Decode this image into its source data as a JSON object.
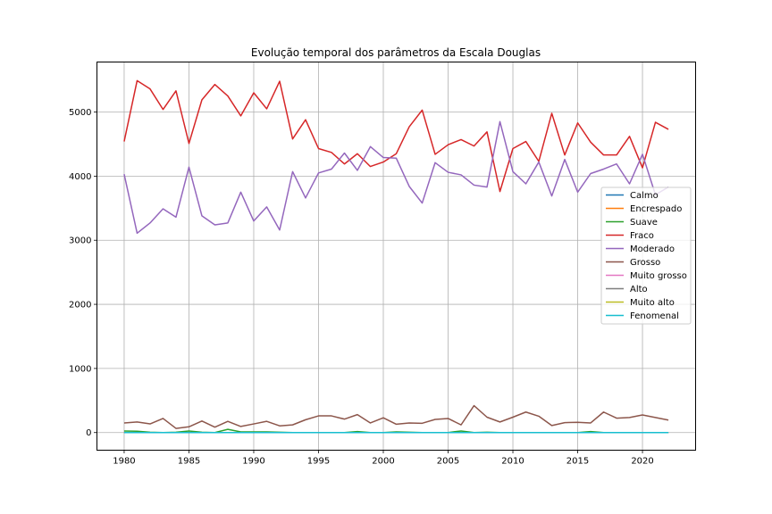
{
  "chart_data": {
    "type": "line",
    "title": "Evolução temporal dos parâmetros da Escala Douglas",
    "xlabel": "",
    "ylabel": "",
    "xlim": [
      1977.9,
      2024.1
    ],
    "ylim": [
      -275,
      5780
    ],
    "xticks": [
      1980,
      1985,
      1990,
      1995,
      2000,
      2005,
      2010,
      2015,
      2020
    ],
    "yticks": [
      0,
      1000,
      2000,
      3000,
      4000,
      5000
    ],
    "grid": true,
    "legend_position": "center-right",
    "x": [
      1980,
      1981,
      1982,
      1983,
      1984,
      1985,
      1986,
      1987,
      1988,
      1989,
      1990,
      1991,
      1992,
      1993,
      1994,
      1995,
      1996,
      1997,
      1998,
      1999,
      2000,
      2001,
      2002,
      2003,
      2004,
      2005,
      2006,
      2007,
      2008,
      2009,
      2010,
      2011,
      2012,
      2013,
      2014,
      2015,
      2016,
      2017,
      2018,
      2019,
      2020,
      2021,
      2022
    ],
    "series": [
      {
        "name": "Calmo",
        "color": "#1f77b4",
        "values": [
          0,
          0,
          0,
          0,
          0,
          0,
          0,
          0,
          0,
          0,
          0,
          0,
          0,
          0,
          0,
          0,
          0,
          0,
          0,
          0,
          0,
          0,
          0,
          0,
          0,
          0,
          0,
          0,
          0,
          0,
          0,
          0,
          0,
          0,
          0,
          0,
          0,
          0,
          0,
          0,
          0,
          0,
          0
        ]
      },
      {
        "name": "Encrespado",
        "color": "#ff7f0e",
        "values": [
          0,
          0,
          0,
          0,
          0,
          0,
          0,
          0,
          0,
          0,
          0,
          0,
          0,
          0,
          0,
          0,
          0,
          0,
          0,
          0,
          0,
          0,
          0,
          0,
          0,
          0,
          0,
          0,
          0,
          0,
          0,
          0,
          0,
          0,
          0,
          0,
          0,
          0,
          0,
          0,
          0,
          0,
          0
        ]
      },
      {
        "name": "Suave",
        "color": "#2ca02c",
        "values": [
          25,
          20,
          5,
          0,
          5,
          25,
          5,
          0,
          50,
          10,
          10,
          10,
          5,
          0,
          0,
          0,
          0,
          0,
          15,
          0,
          0,
          10,
          5,
          0,
          0,
          0,
          25,
          0,
          5,
          0,
          0,
          0,
          0,
          0,
          0,
          0,
          15,
          0,
          0,
          0,
          0,
          0,
          0
        ]
      },
      {
        "name": "Fraco",
        "color": "#d62728",
        "values": [
          4540,
          5490,
          5360,
          5040,
          5330,
          4510,
          5190,
          5430,
          5250,
          4940,
          5300,
          5050,
          5480,
          4580,
          4880,
          4430,
          4370,
          4190,
          4350,
          4150,
          4220,
          4350,
          4770,
          5030,
          4340,
          4490,
          4570,
          4470,
          4690,
          3760,
          4430,
          4540,
          4230,
          4980,
          4330,
          4830,
          4530,
          4330,
          4330,
          4620,
          4130,
          4840,
          4730
        ]
      },
      {
        "name": "Moderado",
        "color": "#9467bd",
        "values": [
          4030,
          3110,
          3270,
          3490,
          3360,
          4140,
          3380,
          3240,
          3270,
          3750,
          3300,
          3520,
          3160,
          4070,
          3660,
          4050,
          4110,
          4360,
          4090,
          4460,
          4290,
          4280,
          3840,
          3580,
          4210,
          4060,
          4020,
          3860,
          3830,
          4850,
          4070,
          3880,
          4220,
          3690,
          4260,
          3750,
          4040,
          4110,
          4190,
          3880,
          4340,
          3710,
          3830
        ]
      },
      {
        "name": "Grosso",
        "color": "#8c564b",
        "values": [
          150,
          165,
          135,
          220,
          65,
          90,
          180,
          85,
          175,
          95,
          135,
          175,
          105,
          120,
          200,
          260,
          260,
          210,
          280,
          150,
          230,
          130,
          150,
          145,
          205,
          220,
          120,
          420,
          240,
          165,
          240,
          320,
          255,
          110,
          155,
          160,
          150,
          320,
          225,
          235,
          275,
          235,
          195
        ]
      },
      {
        "name": "Muito grosso",
        "color": "#e377c2",
        "values": [
          0,
          0,
          0,
          0,
          0,
          0,
          0,
          0,
          0,
          0,
          0,
          0,
          0,
          0,
          0,
          0,
          0,
          0,
          0,
          0,
          0,
          0,
          0,
          0,
          0,
          0,
          0,
          0,
          0,
          0,
          0,
          0,
          0,
          0,
          0,
          0,
          0,
          0,
          0,
          0,
          0,
          0,
          0
        ]
      },
      {
        "name": "Alto",
        "color": "#7f7f7f",
        "values": [
          0,
          0,
          0,
          0,
          0,
          0,
          0,
          0,
          0,
          0,
          0,
          0,
          0,
          0,
          0,
          0,
          0,
          0,
          0,
          0,
          0,
          0,
          0,
          0,
          0,
          0,
          0,
          0,
          0,
          0,
          0,
          0,
          0,
          0,
          0,
          0,
          0,
          0,
          0,
          0,
          0,
          0,
          0
        ]
      },
      {
        "name": "Muito alto",
        "color": "#bcbd22",
        "values": [
          0,
          0,
          0,
          0,
          0,
          0,
          0,
          0,
          0,
          0,
          0,
          0,
          0,
          0,
          0,
          0,
          0,
          0,
          0,
          0,
          0,
          0,
          0,
          0,
          0,
          0,
          0,
          0,
          0,
          0,
          0,
          0,
          0,
          0,
          0,
          0,
          0,
          0,
          0,
          0,
          0,
          0,
          0
        ]
      },
      {
        "name": "Fenomenal",
        "color": "#17becf",
        "values": [
          0,
          0,
          0,
          0,
          0,
          0,
          0,
          0,
          0,
          0,
          0,
          0,
          0,
          0,
          0,
          0,
          0,
          0,
          0,
          0,
          0,
          0,
          0,
          0,
          0,
          0,
          0,
          0,
          0,
          0,
          0,
          0,
          0,
          0,
          0,
          0,
          0,
          0,
          0,
          0,
          0,
          0,
          0
        ]
      }
    ]
  }
}
